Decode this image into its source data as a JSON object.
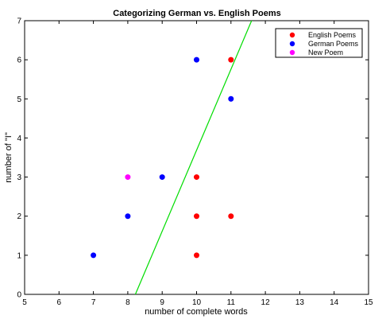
{
  "chart_data": {
    "type": "scatter",
    "title": "Categorizing German vs. English Poems",
    "xlabel": "number of complete words",
    "ylabel": "number of \"I\"",
    "xlim": [
      5,
      15
    ],
    "ylim": [
      0,
      7
    ],
    "xticks": [
      5,
      6,
      7,
      8,
      9,
      10,
      11,
      12,
      13,
      14,
      15
    ],
    "yticks": [
      0,
      1,
      2,
      3,
      4,
      5,
      6,
      7
    ],
    "grid": false,
    "legend_position": "top-right",
    "series": [
      {
        "name": "English Poems",
        "color": "#ff0000",
        "points": [
          [
            11,
            6
          ],
          [
            10,
            3
          ],
          [
            10,
            2
          ],
          [
            11,
            2
          ],
          [
            10,
            1
          ]
        ]
      },
      {
        "name": "German Poems",
        "color": "#0000ff",
        "points": [
          [
            10,
            6
          ],
          [
            11,
            5
          ],
          [
            9,
            3
          ],
          [
            8,
            2
          ],
          [
            7,
            1
          ]
        ]
      },
      {
        "name": "New Poem",
        "color": "#ff00ff",
        "points": [
          [
            8,
            3
          ]
        ]
      }
    ],
    "lines": [
      {
        "color": "#00dd00",
        "points": [
          [
            8.22,
            0
          ],
          [
            11.6,
            7
          ]
        ]
      }
    ]
  }
}
